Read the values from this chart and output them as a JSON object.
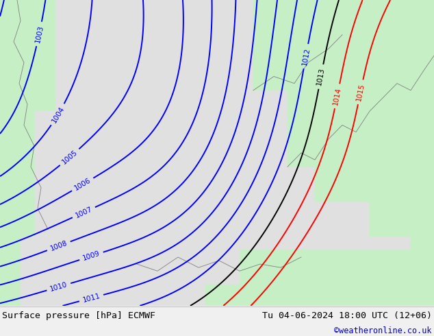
{
  "title_left": "Surface pressure [hPa] ECMWF",
  "title_right": "Tu 04-06-2024 18:00 UTC (12+06)",
  "copyright": "©weatheronline.co.uk",
  "bg_color": "#e0e0e0",
  "land_color_rgb": [
    0.78,
    0.94,
    0.78
  ],
  "sea_color_rgb": [
    0.88,
    0.88,
    0.88
  ],
  "footer_bg": "#f0f0f0",
  "footer_text_color": "#000000",
  "copyright_color": "#0000cc",
  "blue_line_color": "#0000ff",
  "black_line_color": "#000000",
  "red_line_color": "#ff0000",
  "gray_line_color": "#808080",
  "figwidth": 6.34,
  "figheight": 4.9,
  "dpi": 100
}
